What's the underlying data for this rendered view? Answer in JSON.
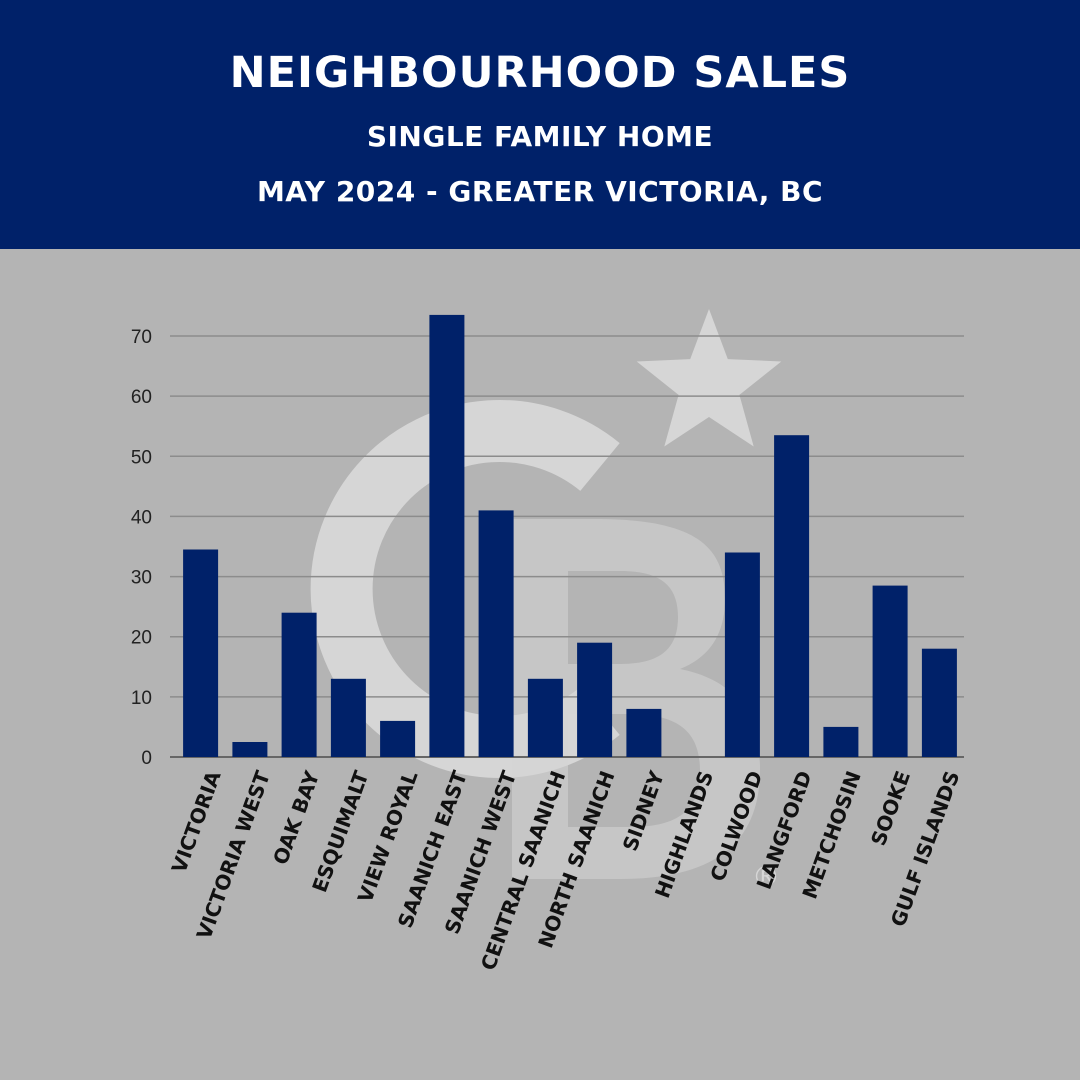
{
  "header": {
    "title": "NEIGHBOURHOOD SALES",
    "subtitle": "SINGLE FAMILY HOME",
    "subtitle2": "MAY 2024 - GREATER VICTORIA, BC"
  },
  "colors": {
    "header_bg": "#002169",
    "bar": "#002169",
    "background": "#b4b4b4",
    "watermark": "#d6d6d6"
  },
  "watermark": {
    "logo": "coldwell-banker-cb-star-logo",
    "registered_mark": "®"
  },
  "chart_data": {
    "type": "bar",
    "categories": [
      "VICTORIA",
      "VICTORIA WEST",
      "OAK BAY",
      "ESQUIMALT",
      "VIEW ROYAL",
      "SAANICH EAST",
      "SAANICH WEST",
      "CENTRAL SAANICH",
      "NORTH SAANICH",
      "SIDNEY",
      "HIGHLANDS",
      "COLWOOD",
      "LANGFORD",
      "METCHOSIN",
      "SOOKE",
      "GULF ISLANDS"
    ],
    "values": [
      34.5,
      2.5,
      24,
      13,
      6,
      73.5,
      41,
      13,
      19,
      8,
      0,
      34,
      53.5,
      5,
      28.5,
      18
    ],
    "ylim": [
      0,
      70
    ],
    "yticks": [
      0,
      10,
      20,
      30,
      40,
      50,
      60,
      70
    ],
    "grid": true,
    "xlabel": "",
    "ylabel": ""
  }
}
